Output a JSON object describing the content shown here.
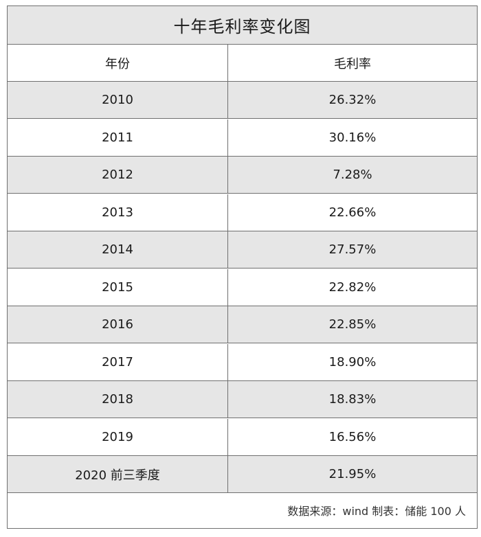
{
  "chart_data": {
    "type": "table",
    "title": "十年毛利率变化图",
    "columns": [
      "年份",
      "毛利率"
    ],
    "rows": [
      {
        "year": "2010",
        "value": "26.32%"
      },
      {
        "year": "2011",
        "value": "30.16%"
      },
      {
        "year": "2012",
        "value": "7.28%"
      },
      {
        "year": "2013",
        "value": "22.66%"
      },
      {
        "year": "2014",
        "value": "27.57%"
      },
      {
        "year": "2015",
        "value": "22.82%"
      },
      {
        "year": "2016",
        "value": "22.85%"
      },
      {
        "year": "2017",
        "value": "18.90%"
      },
      {
        "year": "2018",
        "value": "18.83%"
      },
      {
        "year": "2019",
        "value": "16.56%"
      },
      {
        "year": "2020 前三季度",
        "value": "21.95%"
      }
    ],
    "source_note": "数据来源：wind  制表：储能 100 人"
  }
}
